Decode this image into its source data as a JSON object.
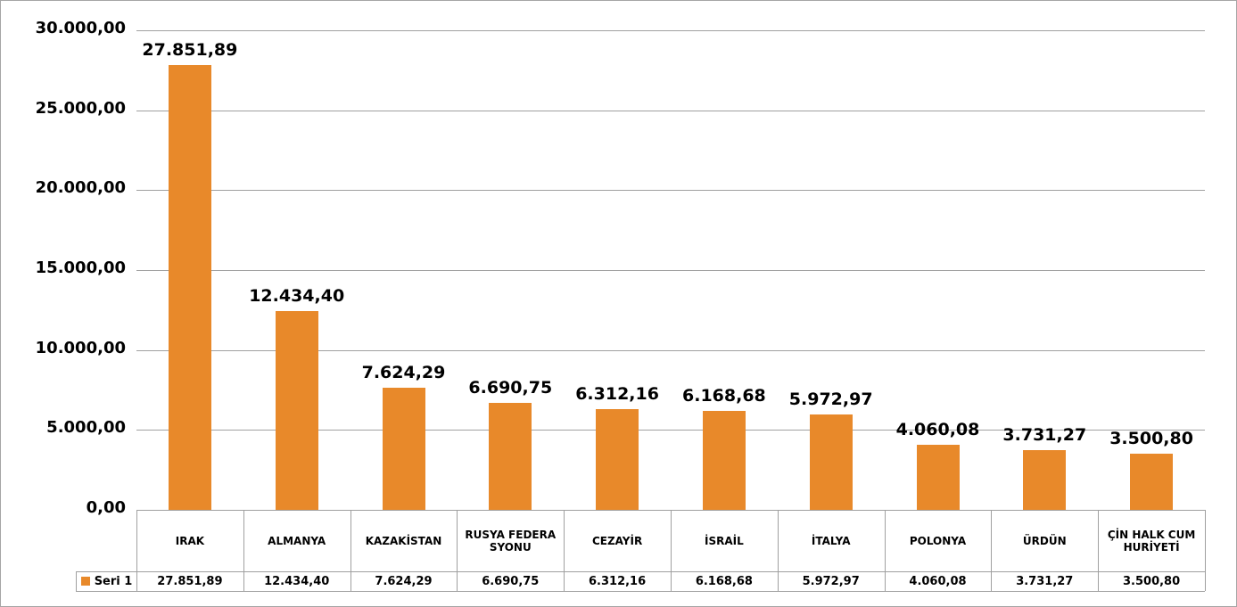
{
  "chart_data": {
    "type": "bar",
    "categories": [
      "IRAK",
      "ALMANYA",
      "KAZAKİSTAN",
      "RUSYA FEDERASYONU",
      "CEZAYİR",
      "İSRAİL",
      "İTALYA",
      "POLONYA",
      "ÜRDÜN",
      "ÇİN HALK CUMHURİYETİ"
    ],
    "series": [
      {
        "name": "Seri 1",
        "color": "#e8892a",
        "values": [
          27851.89,
          12434.4,
          7624.29,
          6690.75,
          6312.16,
          6168.68,
          5972.97,
          4060.08,
          3731.27,
          3500.8
        ],
        "value_labels": [
          "27.851,89",
          "12.434,40",
          "7.624,29",
          "6.690,75",
          "6.312,16",
          "6.168,68",
          "5.972,97",
          "4.060,08",
          "3.731,27",
          "3.500,80"
        ]
      }
    ],
    "ylim": [
      0,
      30000
    ],
    "yticks": [
      {
        "value": 0,
        "label": "0,00"
      },
      {
        "value": 5000,
        "label": "5.000,00"
      },
      {
        "value": 10000,
        "label": "10.000,00"
      },
      {
        "value": 15000,
        "label": "15.000,00"
      },
      {
        "value": 20000,
        "label": "20.000,00"
      },
      {
        "value": 25000,
        "label": "25.000,00"
      },
      {
        "value": 30000,
        "label": "30.000,00"
      }
    ],
    "grid": true,
    "data_table": true
  }
}
